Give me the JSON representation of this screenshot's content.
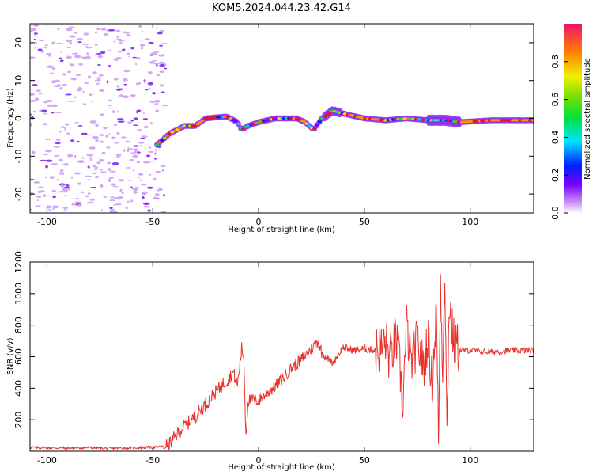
{
  "title": "KOM5.2024.044.23.42.G14",
  "chart_data": [
    {
      "type": "heatmap",
      "xlabel": "Height of straight line (km)",
      "ylabel": "Frequency (Hz)",
      "xlim": [
        -108,
        130
      ],
      "ylim": [
        -25,
        25
      ],
      "x_ticks": [
        -100,
        -50,
        0,
        50,
        100
      ],
      "y_ticks": [
        -20,
        -10,
        0,
        10,
        20
      ],
      "colorbar": {
        "label": "Normalized spectral amplitude",
        "range": [
          0,
          1
        ],
        "ticks": [
          "0.0",
          "0.2",
          "0.4",
          "0.6",
          "0.8"
        ]
      },
      "ridge": [
        {
          "x": -48,
          "freq": -7
        },
        {
          "x": -42,
          "freq": -4
        },
        {
          "x": -35,
          "freq": -2
        },
        {
          "x": -30,
          "freq": -2
        },
        {
          "x": -25,
          "freq": 0
        },
        {
          "x": -15,
          "freq": 0.5
        },
        {
          "x": -10,
          "freq": -1
        },
        {
          "x": -8,
          "freq": -3
        },
        {
          "x": -5,
          "freq": -2
        },
        {
          "x": 0,
          "freq": -1
        },
        {
          "x": 8,
          "freq": 0
        },
        {
          "x": 18,
          "freq": 0
        },
        {
          "x": 22,
          "freq": -1
        },
        {
          "x": 26,
          "freq": -3
        },
        {
          "x": 30,
          "freq": 0
        },
        {
          "x": 35,
          "freq": 2
        },
        {
          "x": 42,
          "freq": 1
        },
        {
          "x": 50,
          "freq": 0
        },
        {
          "x": 60,
          "freq": -0.5
        },
        {
          "x": 70,
          "freq": 0
        },
        {
          "x": 80,
          "freq": -0.5
        },
        {
          "x": 88,
          "freq": -0.5
        },
        {
          "x": 95,
          "freq": -1
        },
        {
          "x": 110,
          "freq": -0.5
        },
        {
          "x": 130,
          "freq": -0.5
        }
      ]
    },
    {
      "type": "line",
      "xlabel": "Height of straight line (km)",
      "ylabel": "SNR (v/v)",
      "xlim": [
        -108,
        130
      ],
      "ylim": [
        0,
        1200
      ],
      "x_ticks": [
        -100,
        -50,
        0,
        50,
        100
      ],
      "y_ticks": [
        200,
        400,
        600,
        800,
        1000,
        1200
      ],
      "color": "#e8322c",
      "x": [
        -108,
        -100,
        -90,
        -80,
        -70,
        -60,
        -50,
        -45,
        -42,
        -40,
        -38,
        -35,
        -30,
        -25,
        -20,
        -15,
        -12,
        -10,
        -8,
        -7,
        -6,
        -5,
        -3,
        0,
        5,
        10,
        15,
        20,
        25,
        28,
        30,
        35,
        38,
        40,
        45,
        50,
        55,
        58,
        60,
        62,
        65,
        67,
        68,
        70,
        72,
        75,
        78,
        80,
        82,
        84,
        85,
        86,
        87,
        88,
        89,
        90,
        92,
        95,
        100,
        110,
        120,
        130
      ],
      "y": [
        25,
        22,
        20,
        23,
        18,
        22,
        25,
        30,
        50,
        80,
        120,
        160,
        220,
        300,
        380,
        450,
        500,
        420,
        650,
        600,
        100,
        320,
        330,
        320,
        380,
        440,
        520,
        580,
        650,
        700,
        620,
        560,
        620,
        660,
        640,
        650,
        640,
        650,
        700,
        580,
        720,
        500,
        280,
        800,
        550,
        700,
        520,
        740,
        420,
        900,
        80,
        1080,
        520,
        1200,
        90,
        950,
        700,
        640,
        640,
        630,
        640,
        640
      ]
    }
  ]
}
